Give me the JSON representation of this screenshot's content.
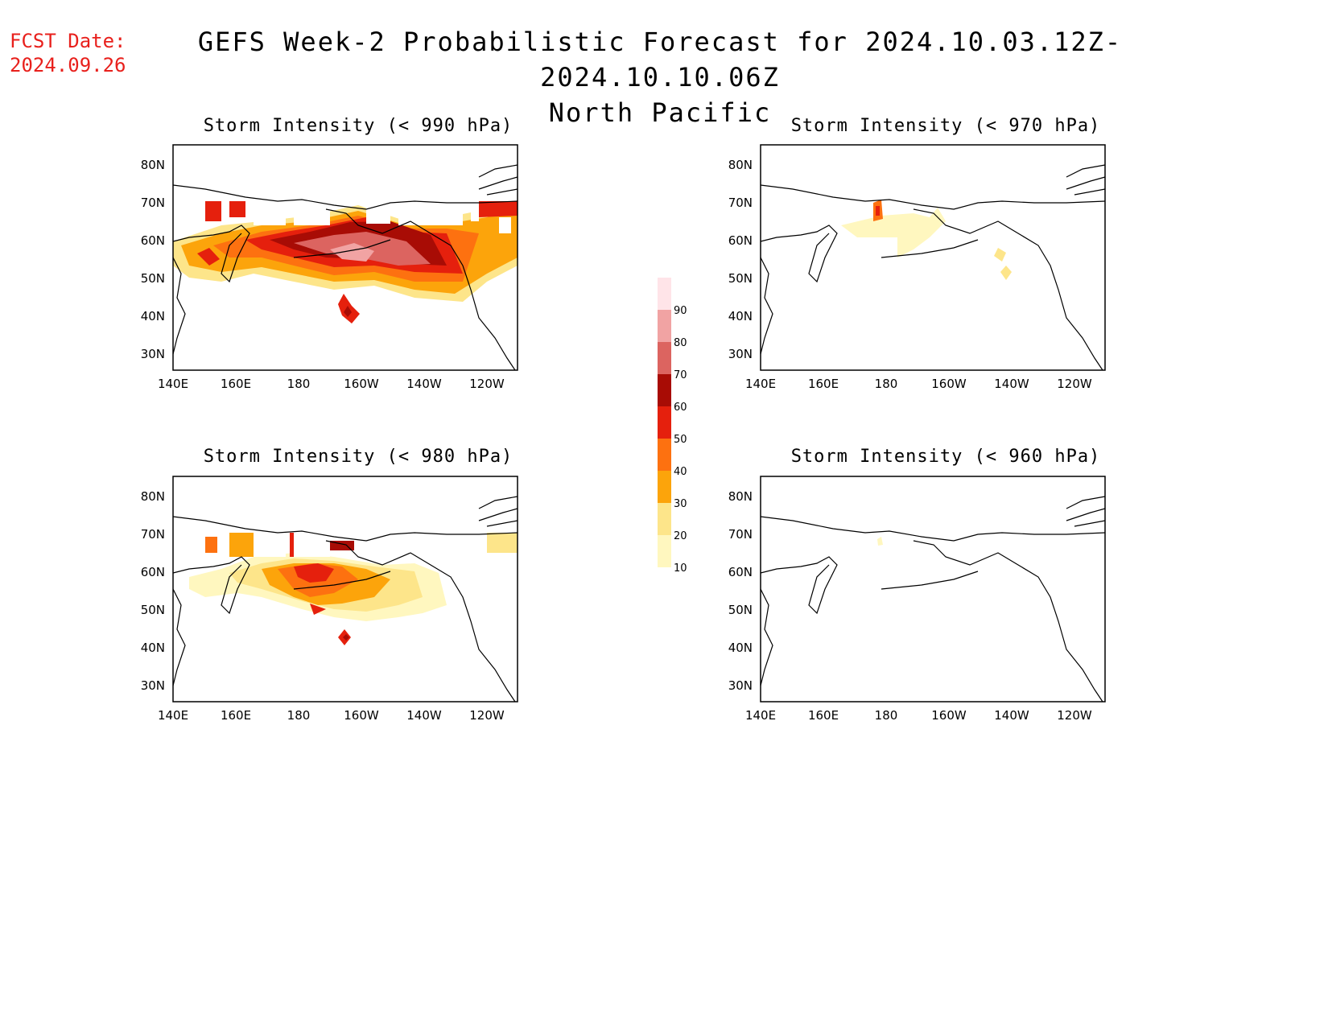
{
  "header": {
    "fcst_label": "FCST Date:",
    "fcst_date": "2024.09.26",
    "title": "GEFS Week-2 Probabilistic Forecast for 2024.10.03.12Z-2024.10.10.06Z",
    "subtitle": "North Pacific"
  },
  "axes": {
    "lat_ticks": [
      "80N",
      "70N",
      "60N",
      "50N",
      "40N",
      "30N"
    ],
    "lon_ticks": [
      "140E",
      "160E",
      "180",
      "160W",
      "140W",
      "120W"
    ]
  },
  "colorbar": {
    "levels": [
      "10",
      "20",
      "30",
      "40",
      "50",
      "60",
      "70",
      "80",
      "90"
    ],
    "colors": [
      "#fff7bf",
      "#fde58a",
      "#fca40b",
      "#fd7110",
      "#e5200d",
      "#a80c05",
      "#dc6460",
      "#f1a3a3",
      "#ffe4e8"
    ]
  },
  "panels": [
    {
      "id": "p990",
      "title": "Storm Intensity (< 990 hPa)"
    },
    {
      "id": "p970",
      "title": "Storm Intensity (< 970 hPa)"
    },
    {
      "id": "p980",
      "title": "Storm Intensity (< 980 hPa)"
    },
    {
      "id": "p960",
      "title": "Storm Intensity (< 960 hPa)"
    }
  ]
}
